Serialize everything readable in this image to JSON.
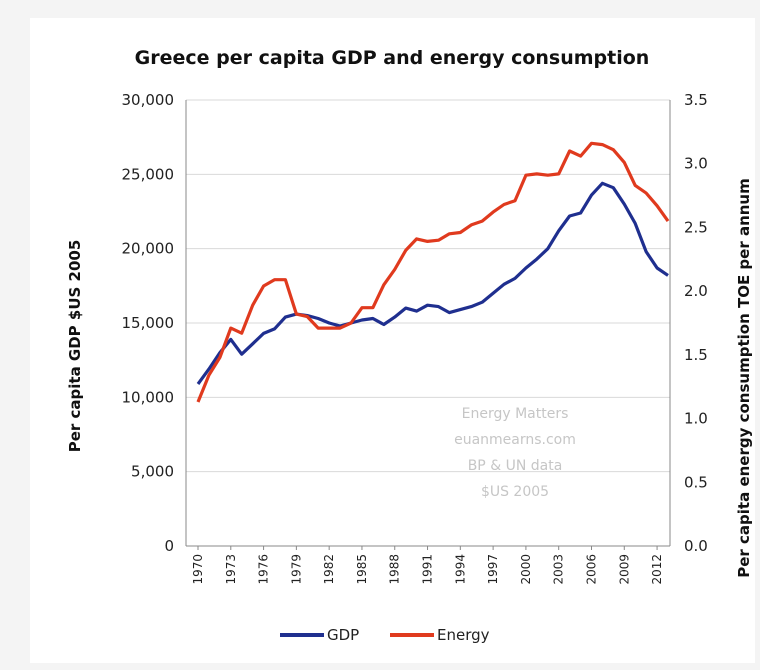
{
  "chart_data": {
    "type": "line",
    "title": "Greece per capita GDP and energy consumption",
    "ylabel_left": "Per capita GDP $US 2005",
    "ylabel_right": "Per capita energy consumption TOE per annum",
    "ylim_left": [
      0,
      30000
    ],
    "ylim_right": [
      0,
      3.5
    ],
    "y_ticks_left": [
      "0",
      "5,000",
      "10,000",
      "15,000",
      "20,000",
      "25,000",
      "30,000"
    ],
    "y_ticks_right": [
      "0.0",
      "0.5",
      "1.0",
      "1.5",
      "2.0",
      "2.5",
      "3.0",
      "3.5"
    ],
    "x_ticks": [
      "1970",
      "1973",
      "1976",
      "1979",
      "1982",
      "1985",
      "1988",
      "1991",
      "1994",
      "1997",
      "2000",
      "2003",
      "2006",
      "2009",
      "2012"
    ],
    "grid": true,
    "legend_position": "bottom",
    "x": [
      1970,
      1971,
      1972,
      1973,
      1974,
      1975,
      1976,
      1977,
      1978,
      1979,
      1980,
      1981,
      1982,
      1983,
      1984,
      1985,
      1986,
      1987,
      1988,
      1989,
      1990,
      1991,
      1992,
      1993,
      1994,
      1995,
      1996,
      1997,
      1998,
      1999,
      2000,
      2001,
      2002,
      2003,
      2004,
      2005,
      2006,
      2007,
      2008,
      2009,
      2010,
      2011,
      2012,
      2013
    ],
    "series": [
      {
        "name": "GDP",
        "axis": "left",
        "color": "#1f2f8f",
        "values": [
          10900,
          11900,
          13000,
          13900,
          12900,
          13600,
          14300,
          14600,
          15400,
          15600,
          15500,
          15300,
          15000,
          14800,
          15000,
          15200,
          15300,
          14900,
          15400,
          16000,
          15800,
          16200,
          16100,
          15700,
          15900,
          16100,
          16400,
          17000,
          17600,
          18000,
          18700,
          19300,
          20000,
          21200,
          22200,
          22400,
          23600,
          24400,
          24100,
          23000,
          21700,
          19800,
          18700,
          18200
        ]
      },
      {
        "name": "Energy",
        "axis": "right",
        "color": "#e03a1e",
        "values": [
          1.13,
          1.34,
          1.48,
          1.71,
          1.67,
          1.89,
          2.04,
          2.09,
          2.09,
          1.82,
          1.8,
          1.71,
          1.71,
          1.71,
          1.75,
          1.87,
          1.87,
          2.05,
          2.17,
          2.32,
          2.41,
          2.39,
          2.4,
          2.45,
          2.46,
          2.52,
          2.55,
          2.62,
          2.68,
          2.71,
          2.91,
          2.92,
          2.91,
          2.92,
          3.1,
          3.06,
          3.16,
          3.15,
          3.11,
          3.01,
          2.83,
          2.77,
          2.67,
          2.55
        ]
      }
    ],
    "annotation": [
      "Energy Matters",
      "euanmearns.com",
      "BP & UN data",
      "$US 2005"
    ]
  }
}
